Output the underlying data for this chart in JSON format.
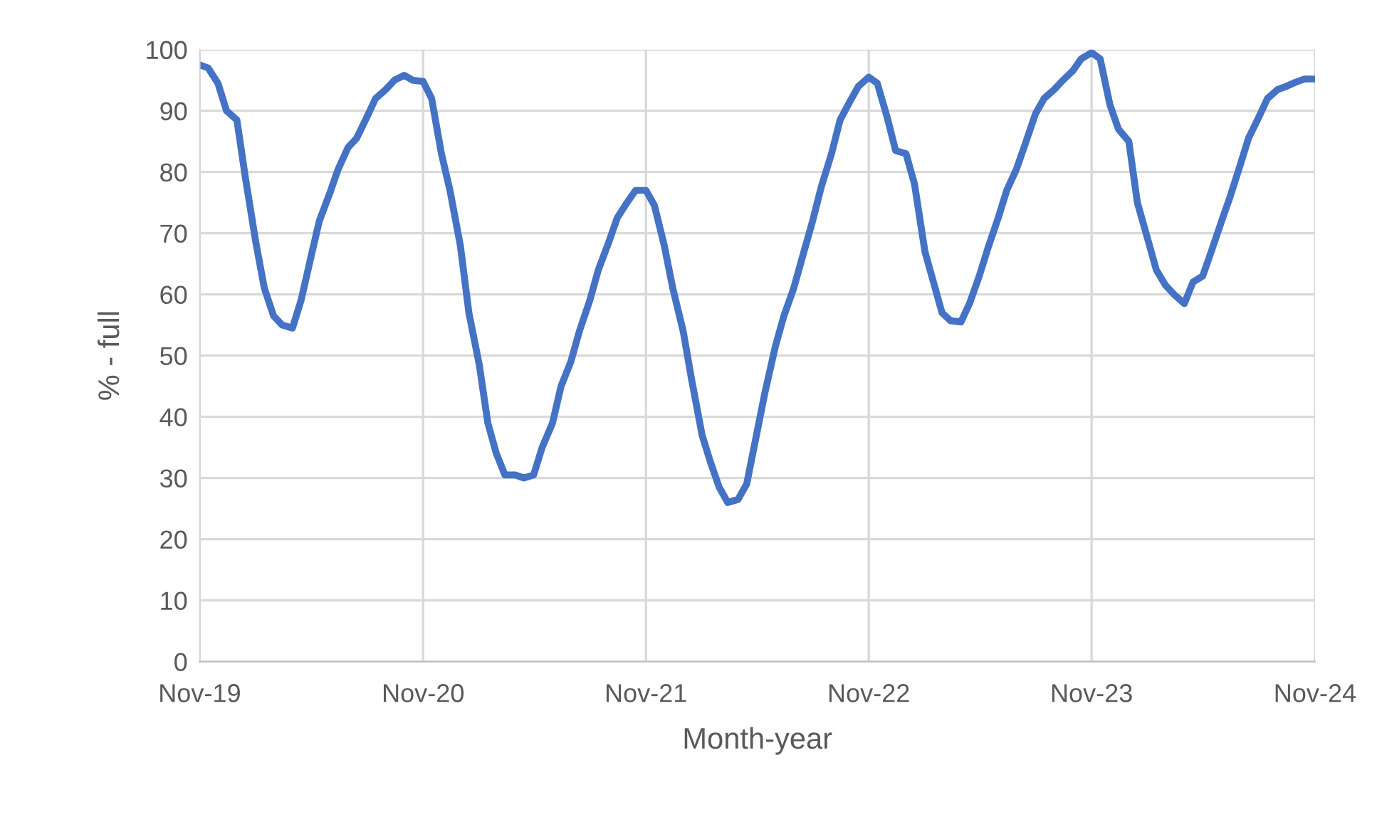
{
  "chart_data": {
    "type": "line",
    "xlabel": "Month-year",
    "ylabel": "% - full",
    "x": [
      "2019-11-01",
      "2019-11-15",
      "2019-12-01",
      "2019-12-15",
      "2020-01-01",
      "2020-01-15",
      "2020-02-01",
      "2020-02-15",
      "2020-03-01",
      "2020-03-15",
      "2020-04-01",
      "2020-04-15",
      "2020-05-01",
      "2020-05-15",
      "2020-06-01",
      "2020-06-15",
      "2020-07-01",
      "2020-07-15",
      "2020-08-01",
      "2020-08-15",
      "2020-09-01",
      "2020-09-15",
      "2020-10-01",
      "2020-10-15",
      "2020-11-01",
      "2020-11-15",
      "2020-12-01",
      "2020-12-15",
      "2021-01-01",
      "2021-01-15",
      "2021-02-01",
      "2021-02-15",
      "2021-03-01",
      "2021-03-15",
      "2021-04-01",
      "2021-04-15",
      "2021-05-01",
      "2021-05-15",
      "2021-06-01",
      "2021-06-15",
      "2021-07-01",
      "2021-07-15",
      "2021-08-01",
      "2021-08-15",
      "2021-09-01",
      "2021-09-15",
      "2021-10-01",
      "2021-10-15",
      "2021-11-01",
      "2021-11-15",
      "2021-12-01",
      "2021-12-15",
      "2022-01-01",
      "2022-01-15",
      "2022-02-01",
      "2022-02-15",
      "2022-03-01",
      "2022-03-15",
      "2022-04-01",
      "2022-04-15",
      "2022-05-01",
      "2022-05-15",
      "2022-06-01",
      "2022-06-15",
      "2022-07-01",
      "2022-07-15",
      "2022-08-01",
      "2022-08-15",
      "2022-09-01",
      "2022-09-15",
      "2022-10-01",
      "2022-10-15",
      "2022-11-01",
      "2022-11-15",
      "2022-12-01",
      "2022-12-15",
      "2023-01-01",
      "2023-01-15",
      "2023-02-01",
      "2023-02-15",
      "2023-03-01",
      "2023-03-15",
      "2023-04-01",
      "2023-04-15",
      "2023-05-01",
      "2023-05-15",
      "2023-06-01",
      "2023-06-15",
      "2023-07-01",
      "2023-07-15",
      "2023-08-01",
      "2023-08-15",
      "2023-09-01",
      "2023-09-15",
      "2023-10-01",
      "2023-10-15",
      "2023-11-01",
      "2023-11-15",
      "2023-12-01",
      "2023-12-15",
      "2024-01-01",
      "2024-01-15",
      "2024-02-01",
      "2024-02-15",
      "2024-03-01",
      "2024-03-15",
      "2024-04-01",
      "2024-04-15",
      "2024-05-01",
      "2024-05-15",
      "2024-06-01",
      "2024-06-15",
      "2024-07-01",
      "2024-07-15",
      "2024-08-01",
      "2024-08-15",
      "2024-09-01",
      "2024-09-15",
      "2024-10-01",
      "2024-10-15",
      "2024-11-01"
    ],
    "series": [
      {
        "color": "#4472c4",
        "values": [
          97.5,
          97,
          94.5,
          90,
          88.5,
          79,
          68.5,
          61,
          56.5,
          55,
          54.5,
          59,
          66,
          72,
          76.5,
          80.5,
          84,
          85.5,
          89,
          92,
          93.5,
          95,
          95.8,
          95,
          94.8,
          92,
          83,
          77,
          68,
          57,
          48.5,
          39,
          34,
          30.5,
          30.5,
          30,
          30.5,
          35,
          39,
          45,
          49,
          54,
          59,
          64,
          68.5,
          72.5,
          75,
          77,
          77,
          74.5,
          68,
          61,
          54,
          46,
          37,
          32.5,
          28.5,
          26,
          26.5,
          29,
          37,
          44,
          51.5,
          56.5,
          61,
          66,
          72,
          77.5,
          83,
          88.5,
          91.5,
          94,
          95.5,
          94.5,
          89,
          83.5,
          83,
          78,
          67,
          62,
          57,
          55.7,
          55.5,
          58.5,
          63,
          67.5,
          72.5,
          77,
          80.5,
          84.5,
          89.5,
          92,
          93.5,
          95,
          96.5,
          98.5,
          99.5,
          98.5,
          91,
          87,
          85,
          75,
          69,
          64,
          61.5,
          60,
          58.5,
          62,
          63,
          67,
          72,
          76,
          81,
          85.5,
          89,
          92,
          93.5,
          94,
          94.7,
          95.2,
          95.2
        ]
      }
    ],
    "xlim": [
      "2019-11-01",
      "2024-11-01"
    ],
    "xticks": [
      {
        "value": "2019-11-01",
        "label": "Nov-19"
      },
      {
        "value": "2020-11-01",
        "label": "Nov-20"
      },
      {
        "value": "2021-11-01",
        "label": "Nov-21"
      },
      {
        "value": "2022-11-01",
        "label": "Nov-22"
      },
      {
        "value": "2023-11-01",
        "label": "Nov-23"
      },
      {
        "value": "2024-11-01",
        "label": "Nov-24"
      }
    ],
    "ylim": [
      0,
      100
    ],
    "yticks": [
      0,
      10,
      20,
      30,
      40,
      50,
      60,
      70,
      80,
      90,
      100
    ],
    "grid": true,
    "legend": false,
    "marker": "none",
    "line_style": "solid"
  }
}
